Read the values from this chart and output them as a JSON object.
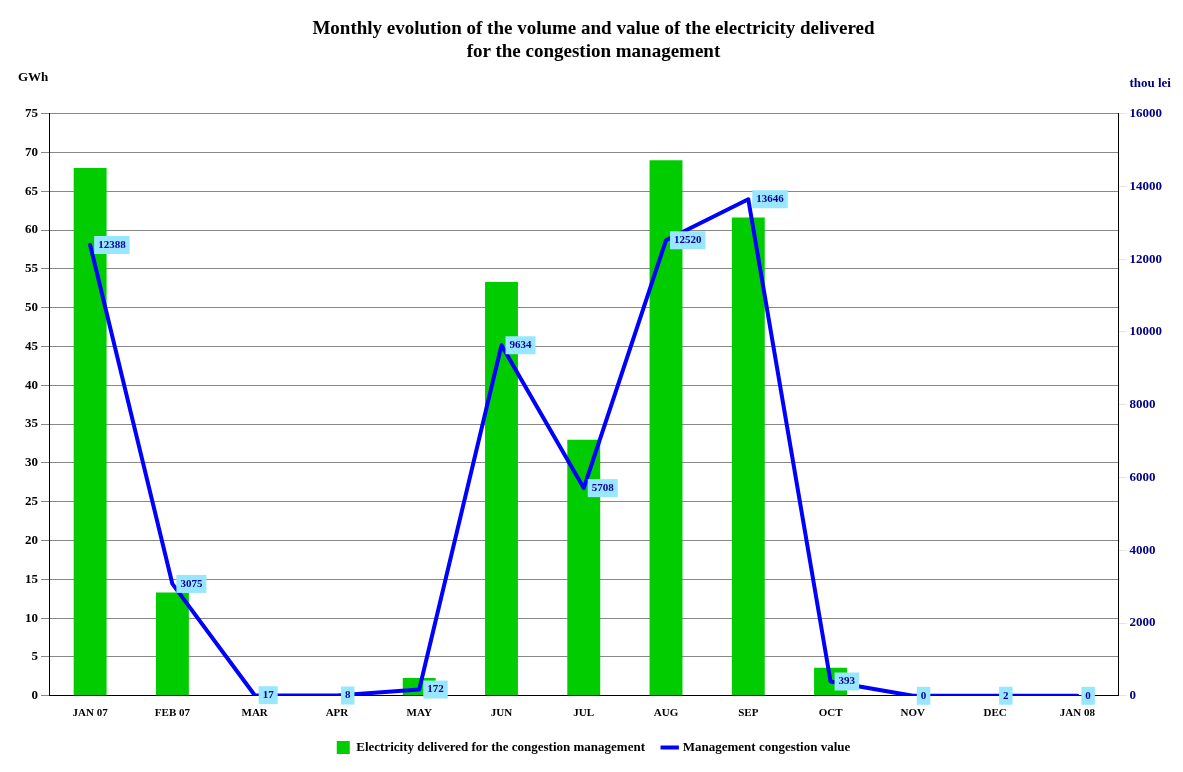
{
  "chart_data": {
    "type": "bar",
    "title": "Monthly evolution of the volume and value of the electricity delivered\nfor the congestion management",
    "ylabel": "GWh",
    "y2label": "thou lei",
    "categories": [
      "JAN 07",
      "FEB 07",
      "MAR",
      "APR",
      "MAY",
      "JUN",
      "JUL",
      "AUG",
      "SEP",
      "OCT",
      "NOV",
      "DEC",
      "JAN 08"
    ],
    "series": [
      {
        "name": "Electricity delivered for the congestion management",
        "color": "#00cc00",
        "values": [
          68,
          13.3,
          0,
          0,
          2.3,
          53.3,
          33,
          69,
          61.6,
          3.6,
          0,
          0,
          0
        ]
      },
      {
        "name": "Management congestion value",
        "type": "line",
        "axis": "y2",
        "color": "#0000ff",
        "values": [
          12388,
          3075,
          17,
          8,
          172,
          9634,
          5708,
          12520,
          13646,
          393,
          0,
          2,
          0
        ],
        "value_labels": [
          "12388",
          "3075",
          "17",
          "8",
          "172",
          "9634",
          "5708",
          "12520",
          "13646",
          "393",
          "0",
          "2",
          "0"
        ]
      }
    ],
    "ylim": [
      0,
      75
    ],
    "yticks": [
      0,
      5,
      10,
      15,
      20,
      25,
      30,
      35,
      40,
      45,
      50,
      55,
      60,
      65,
      70,
      75
    ],
    "y2lim": [
      0,
      16000
    ],
    "y2ticks": [
      0,
      2000,
      4000,
      6000,
      8000,
      10000,
      12000,
      14000,
      16000
    ],
    "grid": "y",
    "legend": "bottom",
    "marker": "none",
    "line_style": "solid"
  }
}
